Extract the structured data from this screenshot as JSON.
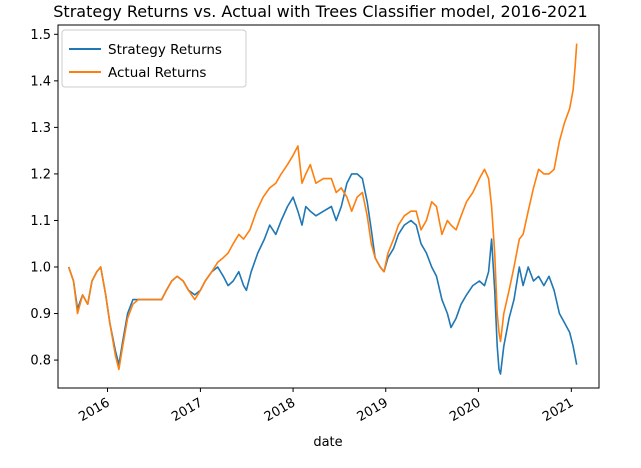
{
  "chart_data": {
    "type": "line",
    "title": "Strategy Returns vs. Actual with Trees Classifier model, 2016-2021",
    "xlabel": "date",
    "ylabel": "",
    "xlim": [
      "2015-06-20",
      "2021-04-20"
    ],
    "ylim": [
      0.74,
      1.52
    ],
    "x_ticks": [
      "2016-01-01",
      "2017-01-01",
      "2018-01-01",
      "2019-01-01",
      "2020-01-01",
      "2021-01-01"
    ],
    "x_tick_labels": [
      "2016",
      "2017",
      "2018",
      "2019",
      "2020",
      "2021"
    ],
    "y_ticks": [
      0.8,
      0.9,
      1.0,
      1.1,
      1.2,
      1.3,
      1.4,
      1.5
    ],
    "y_tick_labels": [
      "0.8",
      "0.9",
      "1.0",
      "1.1",
      "1.2",
      "1.3",
      "1.4",
      "1.5"
    ],
    "grid": false,
    "legend_position": "top-left",
    "series": [
      {
        "name": "Strategy Returns",
        "color": "#1f77b4",
        "points": [
          [
            "2015-08-01",
            1.0
          ],
          [
            "2015-08-20",
            0.97
          ],
          [
            "2015-09-05",
            0.91
          ],
          [
            "2015-09-25",
            0.94
          ],
          [
            "2015-10-15",
            0.92
          ],
          [
            "2015-11-01",
            0.97
          ],
          [
            "2015-11-20",
            0.99
          ],
          [
            "2015-12-05",
            1.0
          ],
          [
            "2015-12-25",
            0.94
          ],
          [
            "2016-01-10",
            0.88
          ],
          [
            "2016-02-01",
            0.82
          ],
          [
            "2016-02-15",
            0.79
          ],
          [
            "2016-03-01",
            0.84
          ],
          [
            "2016-03-20",
            0.9
          ],
          [
            "2016-04-10",
            0.93
          ],
          [
            "2016-05-01",
            0.93
          ],
          [
            "2016-06-01",
            0.93
          ],
          [
            "2016-07-01",
            0.93
          ],
          [
            "2016-08-01",
            0.93
          ],
          [
            "2016-08-20",
            0.95
          ],
          [
            "2016-09-10",
            0.97
          ],
          [
            "2016-10-01",
            0.98
          ],
          [
            "2016-10-25",
            0.97
          ],
          [
            "2016-11-15",
            0.95
          ],
          [
            "2016-12-10",
            0.94
          ],
          [
            "2017-01-01",
            0.95
          ],
          [
            "2017-01-20",
            0.97
          ],
          [
            "2017-02-15",
            0.99
          ],
          [
            "2017-03-10",
            1.0
          ],
          [
            "2017-04-01",
            0.98
          ],
          [
            "2017-04-20",
            0.96
          ],
          [
            "2017-05-10",
            0.97
          ],
          [
            "2017-06-01",
            0.99
          ],
          [
            "2017-06-20",
            0.96
          ],
          [
            "2017-07-01",
            0.95
          ],
          [
            "2017-07-20",
            0.99
          ],
          [
            "2017-08-15",
            1.03
          ],
          [
            "2017-09-10",
            1.06
          ],
          [
            "2017-10-01",
            1.09
          ],
          [
            "2017-10-25",
            1.07
          ],
          [
            "2017-11-15",
            1.1
          ],
          [
            "2017-12-10",
            1.13
          ],
          [
            "2018-01-01",
            1.15
          ],
          [
            "2018-01-20",
            1.12
          ],
          [
            "2018-02-05",
            1.09
          ],
          [
            "2018-02-20",
            1.13
          ],
          [
            "2018-03-10",
            1.12
          ],
          [
            "2018-04-01",
            1.11
          ],
          [
            "2018-05-01",
            1.12
          ],
          [
            "2018-06-01",
            1.13
          ],
          [
            "2018-06-20",
            1.1
          ],
          [
            "2018-07-10",
            1.13
          ],
          [
            "2018-08-01",
            1.18
          ],
          [
            "2018-08-20",
            1.2
          ],
          [
            "2018-09-10",
            1.2
          ],
          [
            "2018-10-01",
            1.19
          ],
          [
            "2018-10-20",
            1.14
          ],
          [
            "2018-11-05",
            1.08
          ],
          [
            "2018-11-20",
            1.02
          ],
          [
            "2018-12-10",
            1.0
          ],
          [
            "2018-12-25",
            0.99
          ],
          [
            "2019-01-10",
            1.02
          ],
          [
            "2019-02-01",
            1.04
          ],
          [
            "2019-02-20",
            1.07
          ],
          [
            "2019-03-15",
            1.09
          ],
          [
            "2019-04-10",
            1.1
          ],
          [
            "2019-05-01",
            1.09
          ],
          [
            "2019-05-20",
            1.05
          ],
          [
            "2019-06-10",
            1.03
          ],
          [
            "2019-07-01",
            1.0
          ],
          [
            "2019-07-20",
            0.98
          ],
          [
            "2019-08-10",
            0.93
          ],
          [
            "2019-09-01",
            0.9
          ],
          [
            "2019-09-15",
            0.87
          ],
          [
            "2019-10-05",
            0.89
          ],
          [
            "2019-10-25",
            0.92
          ],
          [
            "2019-11-15",
            0.94
          ],
          [
            "2019-12-10",
            0.96
          ],
          [
            "2020-01-05",
            0.97
          ],
          [
            "2020-01-25",
            0.96
          ],
          [
            "2020-02-10",
            0.99
          ],
          [
            "2020-02-22",
            1.06
          ],
          [
            "2020-03-05",
            0.95
          ],
          [
            "2020-03-15",
            0.83
          ],
          [
            "2020-03-22",
            0.78
          ],
          [
            "2020-03-28",
            0.77
          ],
          [
            "2020-04-10",
            0.83
          ],
          [
            "2020-05-01",
            0.89
          ],
          [
            "2020-05-20",
            0.93
          ],
          [
            "2020-06-10",
            1.0
          ],
          [
            "2020-06-25",
            0.96
          ],
          [
            "2020-07-15",
            1.0
          ],
          [
            "2020-08-05",
            0.97
          ],
          [
            "2020-08-25",
            0.98
          ],
          [
            "2020-09-15",
            0.96
          ],
          [
            "2020-10-05",
            0.98
          ],
          [
            "2020-10-25",
            0.95
          ],
          [
            "2020-11-15",
            0.9
          ],
          [
            "2020-12-05",
            0.88
          ],
          [
            "2020-12-25",
            0.86
          ],
          [
            "2021-01-08",
            0.83
          ],
          [
            "2021-01-22",
            0.79
          ]
        ]
      },
      {
        "name": "Actual Returns",
        "color": "#ff7f0e",
        "points": [
          [
            "2015-08-01",
            1.0
          ],
          [
            "2015-08-20",
            0.97
          ],
          [
            "2015-09-05",
            0.9
          ],
          [
            "2015-09-25",
            0.94
          ],
          [
            "2015-10-15",
            0.92
          ],
          [
            "2015-11-01",
            0.97
          ],
          [
            "2015-11-20",
            0.99
          ],
          [
            "2015-12-05",
            1.0
          ],
          [
            "2015-12-25",
            0.94
          ],
          [
            "2016-01-10",
            0.88
          ],
          [
            "2016-02-01",
            0.81
          ],
          [
            "2016-02-15",
            0.78
          ],
          [
            "2016-03-01",
            0.83
          ],
          [
            "2016-03-20",
            0.89
          ],
          [
            "2016-04-10",
            0.92
          ],
          [
            "2016-05-01",
            0.93
          ],
          [
            "2016-06-01",
            0.93
          ],
          [
            "2016-07-01",
            0.93
          ],
          [
            "2016-08-01",
            0.93
          ],
          [
            "2016-08-20",
            0.95
          ],
          [
            "2016-09-10",
            0.97
          ],
          [
            "2016-10-01",
            0.98
          ],
          [
            "2016-10-25",
            0.97
          ],
          [
            "2016-11-15",
            0.95
          ],
          [
            "2016-12-10",
            0.93
          ],
          [
            "2017-01-01",
            0.95
          ],
          [
            "2017-01-20",
            0.97
          ],
          [
            "2017-02-15",
            0.99
          ],
          [
            "2017-03-10",
            1.01
          ],
          [
            "2017-04-01",
            1.02
          ],
          [
            "2017-04-20",
            1.03
          ],
          [
            "2017-05-10",
            1.05
          ],
          [
            "2017-06-01",
            1.07
          ],
          [
            "2017-06-20",
            1.06
          ],
          [
            "2017-07-15",
            1.08
          ],
          [
            "2017-08-10",
            1.12
          ],
          [
            "2017-09-05",
            1.15
          ],
          [
            "2017-10-01",
            1.17
          ],
          [
            "2017-10-25",
            1.18
          ],
          [
            "2017-11-15",
            1.2
          ],
          [
            "2017-12-10",
            1.22
          ],
          [
            "2018-01-01",
            1.24
          ],
          [
            "2018-01-20",
            1.26
          ],
          [
            "2018-02-05",
            1.18
          ],
          [
            "2018-02-20",
            1.2
          ],
          [
            "2018-03-10",
            1.22
          ],
          [
            "2018-04-01",
            1.18
          ],
          [
            "2018-05-01",
            1.19
          ],
          [
            "2018-06-01",
            1.19
          ],
          [
            "2018-06-20",
            1.16
          ],
          [
            "2018-07-10",
            1.17
          ],
          [
            "2018-08-01",
            1.15
          ],
          [
            "2018-08-20",
            1.12
          ],
          [
            "2018-09-10",
            1.15
          ],
          [
            "2018-10-01",
            1.16
          ],
          [
            "2018-10-20",
            1.11
          ],
          [
            "2018-11-05",
            1.05
          ],
          [
            "2018-11-20",
            1.02
          ],
          [
            "2018-12-10",
            1.0
          ],
          [
            "2018-12-25",
            0.99
          ],
          [
            "2019-01-10",
            1.03
          ],
          [
            "2019-02-01",
            1.06
          ],
          [
            "2019-02-20",
            1.09
          ],
          [
            "2019-03-15",
            1.11
          ],
          [
            "2019-04-10",
            1.12
          ],
          [
            "2019-05-01",
            1.12
          ],
          [
            "2019-05-20",
            1.08
          ],
          [
            "2019-06-10",
            1.1
          ],
          [
            "2019-07-01",
            1.14
          ],
          [
            "2019-07-20",
            1.13
          ],
          [
            "2019-08-10",
            1.07
          ],
          [
            "2019-09-01",
            1.1
          ],
          [
            "2019-09-15",
            1.09
          ],
          [
            "2019-10-05",
            1.08
          ],
          [
            "2019-10-25",
            1.11
          ],
          [
            "2019-11-15",
            1.14
          ],
          [
            "2019-12-10",
            1.16
          ],
          [
            "2020-01-05",
            1.19
          ],
          [
            "2020-01-25",
            1.21
          ],
          [
            "2020-02-10",
            1.19
          ],
          [
            "2020-02-22",
            1.13
          ],
          [
            "2020-03-05",
            1.03
          ],
          [
            "2020-03-15",
            0.9
          ],
          [
            "2020-03-22",
            0.86
          ],
          [
            "2020-03-28",
            0.84
          ],
          [
            "2020-04-10",
            0.9
          ],
          [
            "2020-05-01",
            0.95
          ],
          [
            "2020-05-20",
            1.0
          ],
          [
            "2020-06-10",
            1.06
          ],
          [
            "2020-06-25",
            1.07
          ],
          [
            "2020-07-15",
            1.12
          ],
          [
            "2020-08-05",
            1.17
          ],
          [
            "2020-08-25",
            1.21
          ],
          [
            "2020-09-15",
            1.2
          ],
          [
            "2020-10-05",
            1.2
          ],
          [
            "2020-10-25",
            1.21
          ],
          [
            "2020-11-15",
            1.27
          ],
          [
            "2020-12-05",
            1.31
          ],
          [
            "2020-12-25",
            1.34
          ],
          [
            "2021-01-08",
            1.38
          ],
          [
            "2021-01-16",
            1.43
          ],
          [
            "2021-01-22",
            1.48
          ]
        ]
      }
    ]
  }
}
